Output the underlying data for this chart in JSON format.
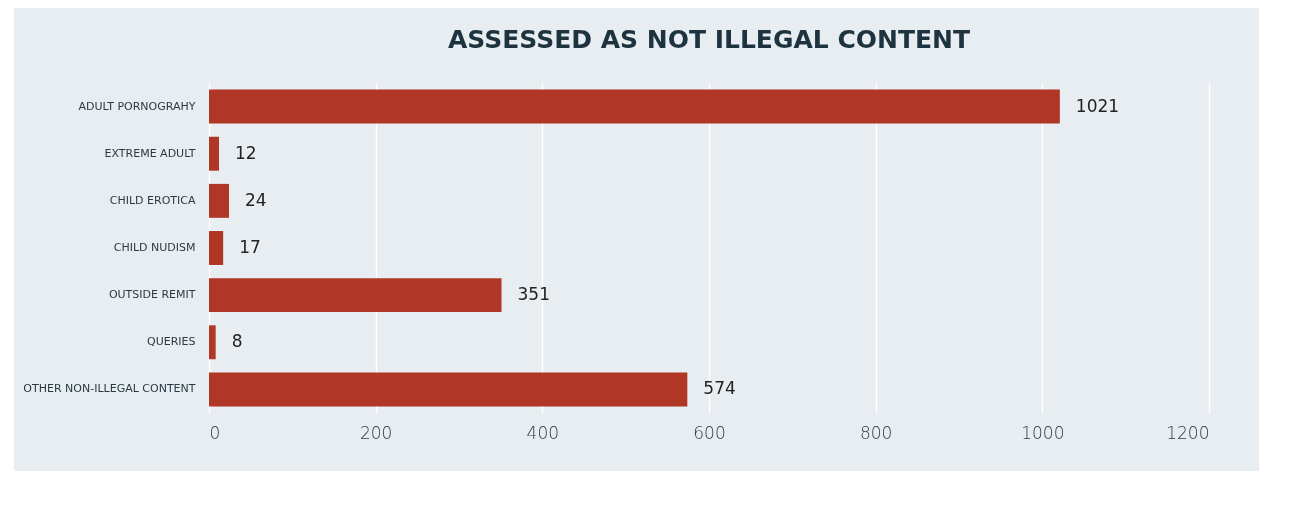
{
  "chart_data": {
    "type": "bar",
    "orientation": "horizontal",
    "title": "ASSESSED AS NOT ILLEGAL CONTENT",
    "categories": [
      "ADULT PORNOGRAHY",
      "EXTREME ADULT",
      "CHILD EROTICA",
      "CHILD NUDISM",
      "OUTSIDE REMIT",
      "QUERIES",
      "OTHER NON-ILLEGAL CONTENT"
    ],
    "values": [
      1021,
      12,
      24,
      17,
      351,
      8,
      574
    ],
    "color": "#b03626",
    "xlim": [
      0,
      1200
    ],
    "xticks": [
      0,
      200,
      400,
      600,
      800,
      1000,
      1200
    ],
    "grid": "x",
    "data_labels": true
  }
}
